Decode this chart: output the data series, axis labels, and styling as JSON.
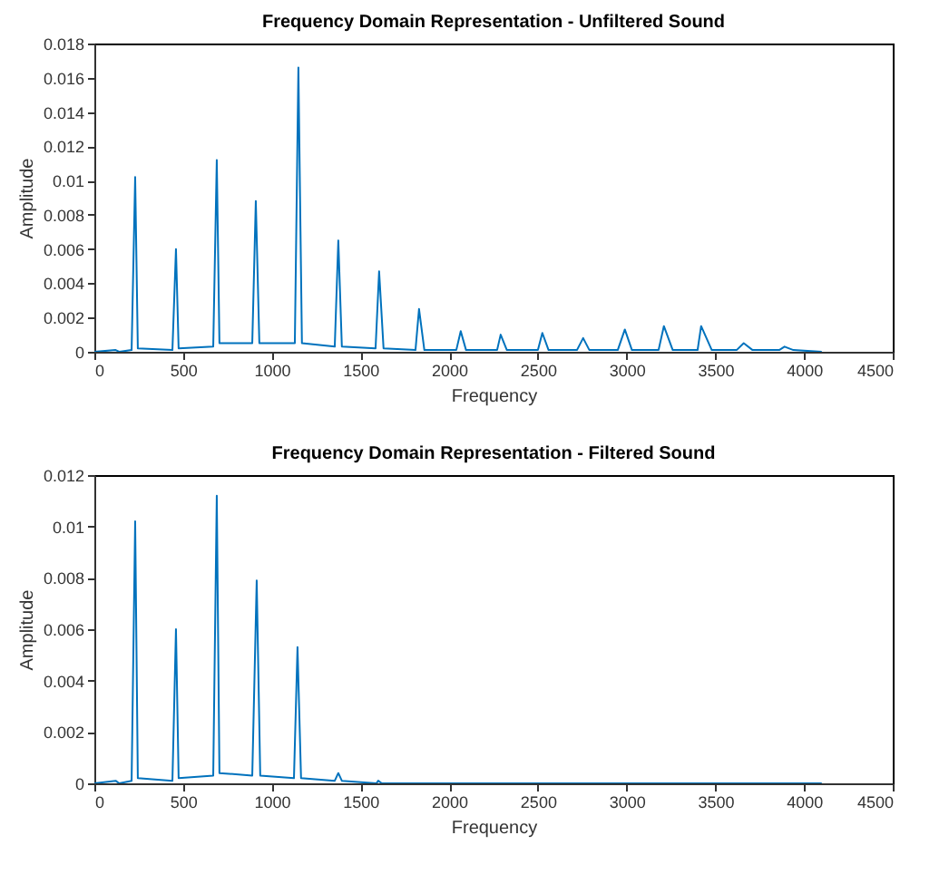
{
  "chart_data": [
    {
      "type": "line",
      "title": "Frequency Domain Representation - Unfiltered Sound",
      "xlabel": "Frequency",
      "ylabel": "Amplitude",
      "x": [
        0,
        120,
        140,
        210,
        230,
        245,
        440,
        460,
        475,
        670,
        690,
        705,
        890,
        910,
        930,
        1130,
        1150,
        1170,
        1355,
        1375,
        1395,
        1585,
        1605,
        1630,
        1810,
        1830,
        1860,
        2040,
        2065,
        2095,
        2270,
        2290,
        2325,
        2500,
        2525,
        2560,
        2720,
        2755,
        2790,
        2950,
        2990,
        3030,
        3180,
        3210,
        3260,
        3400,
        3420,
        3480,
        3620,
        3660,
        3710,
        3860,
        3890,
        3940,
        4100
      ],
      "series": [
        {
          "color": "#0072bd",
          "values": [
            0,
            0.0001,
            0,
            0.0001,
            0.0102,
            0.0002,
            0.0001,
            0.006,
            0.0002,
            0.0003,
            0.0112,
            0.0005,
            0.0005,
            0.0088,
            0.0005,
            0.0005,
            0.0166,
            0.0005,
            0.0003,
            0.0065,
            0.0003,
            0.0002,
            0.0047,
            0.0002,
            0.0001,
            0.0025,
            0.0001,
            0.0001,
            0.0012,
            0.0001,
            0.0001,
            0.001,
            0.0001,
            0.0001,
            0.0011,
            0.0001,
            0.0001,
            0.0008,
            0.0001,
            0.0001,
            0.0013,
            0.0001,
            0.0001,
            0.0015,
            0.0001,
            0.0001,
            0.0015,
            0.0001,
            0.0001,
            0.0005,
            0.0001,
            0.0001,
            0.0003,
            0.0001,
            0
          ]
        }
      ],
      "xlim": [
        0,
        4500
      ],
      "ylim": [
        0,
        0.018
      ],
      "xticks": [
        0,
        500,
        1000,
        1500,
        2000,
        2500,
        3000,
        3500,
        4000,
        4500
      ],
      "yticks": [
        0,
        0.002,
        0.004,
        0.006,
        0.008,
        0.01,
        0.012,
        0.014,
        0.016,
        0.018
      ]
    },
    {
      "type": "line",
      "title": "Frequency Domain Representation - Filtered Sound",
      "xlabel": "Frequency",
      "ylabel": "Amplitude",
      "x": [
        0,
        120,
        140,
        210,
        230,
        245,
        440,
        460,
        475,
        670,
        690,
        705,
        890,
        915,
        935,
        1125,
        1145,
        1165,
        1355,
        1375,
        1395,
        1590,
        1600,
        1620,
        4100
      ],
      "series": [
        {
          "color": "#0072bd",
          "values": [
            0,
            0.0001,
            0,
            0.0001,
            0.0102,
            0.0002,
            0.0001,
            0.006,
            0.0002,
            0.0003,
            0.0112,
            0.0004,
            0.0003,
            0.0079,
            0.0003,
            0.0002,
            0.0053,
            0.0002,
            0.0001,
            0.0004,
            0.0001,
            0,
            0.0001,
            0,
            0
          ]
        }
      ],
      "xlim": [
        0,
        4500
      ],
      "ylim": [
        0,
        0.012
      ],
      "xticks": [
        0,
        500,
        1000,
        1500,
        2000,
        2500,
        3000,
        3500,
        4000,
        4500
      ],
      "yticks": [
        0,
        0.002,
        0.004,
        0.006,
        0.008,
        0.01,
        0.012
      ]
    }
  ]
}
